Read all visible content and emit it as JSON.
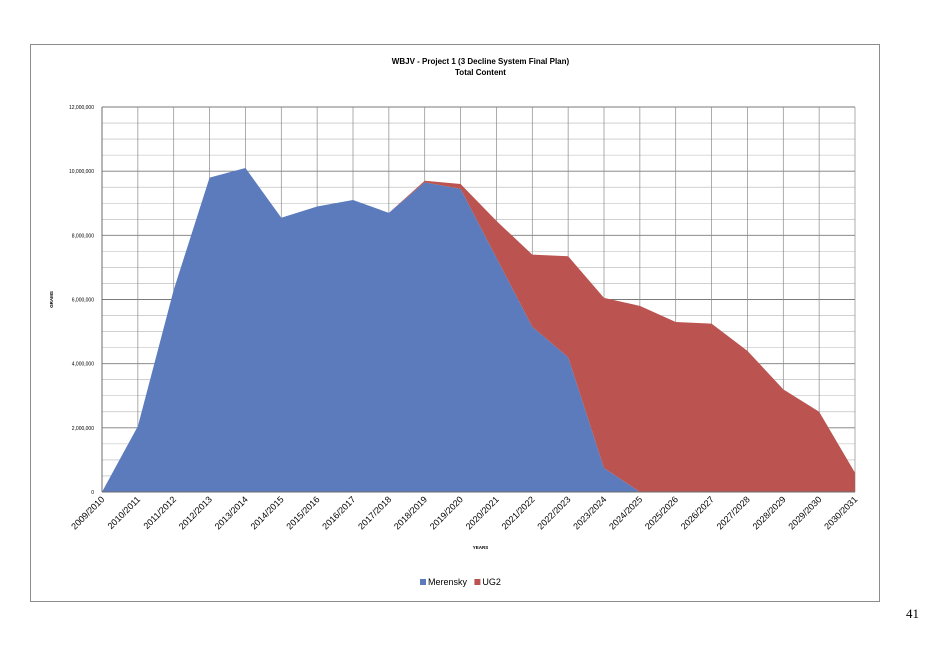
{
  "chart_data": {
    "type": "area",
    "stacked": true,
    "title": "WBJV - Project 1  (3 Decline System Final Plan)",
    "subtitle": "Total Content",
    "xlabel": "YEARS",
    "ylabel": "GRAMS",
    "ylim": [
      0,
      12000000
    ],
    "yticks": [
      0,
      2000000,
      4000000,
      6000000,
      8000000,
      10000000,
      12000000
    ],
    "ytick_labels": [
      "0",
      "2,000,000",
      "4,000,000",
      "6,000,000",
      "8,000,000",
      "10,000,000",
      "12,000,000"
    ],
    "categories": [
      "2009/2010",
      "2010/2011",
      "2011/2012",
      "2012/2013",
      "2013/2014",
      "2014/2015",
      "2015/2016",
      "2016/2017",
      "2017/2018",
      "2018/2019",
      "2019/2020",
      "2020/2021",
      "2021/2022",
      "2022/2023",
      "2023/2024",
      "2024/2025",
      "2025/2026",
      "2026/2027",
      "2027/2028",
      "2028/2029",
      "2029/2030",
      "2030/2031"
    ],
    "series": [
      {
        "name": "Merensky",
        "color": "#5b7bbd",
        "values": [
          0,
          2050000,
          6300000,
          9800000,
          10100000,
          8550000,
          8900000,
          9100000,
          8700000,
          9650000,
          9450000,
          7300000,
          5150000,
          4200000,
          750000,
          0,
          0,
          0,
          0,
          0,
          0,
          0
        ]
      },
      {
        "name": "UG2",
        "color": "#bb5350",
        "values": [
          0,
          0,
          0,
          0,
          0,
          0,
          0,
          0,
          0,
          50000,
          150000,
          1150000,
          2250000,
          3150000,
          5300000,
          5800000,
          5300000,
          5250000,
          4400000,
          3200000,
          2500000,
          600000
        ]
      }
    ],
    "grid": true,
    "legend_position": "bottom"
  },
  "page": {
    "number": "41"
  }
}
